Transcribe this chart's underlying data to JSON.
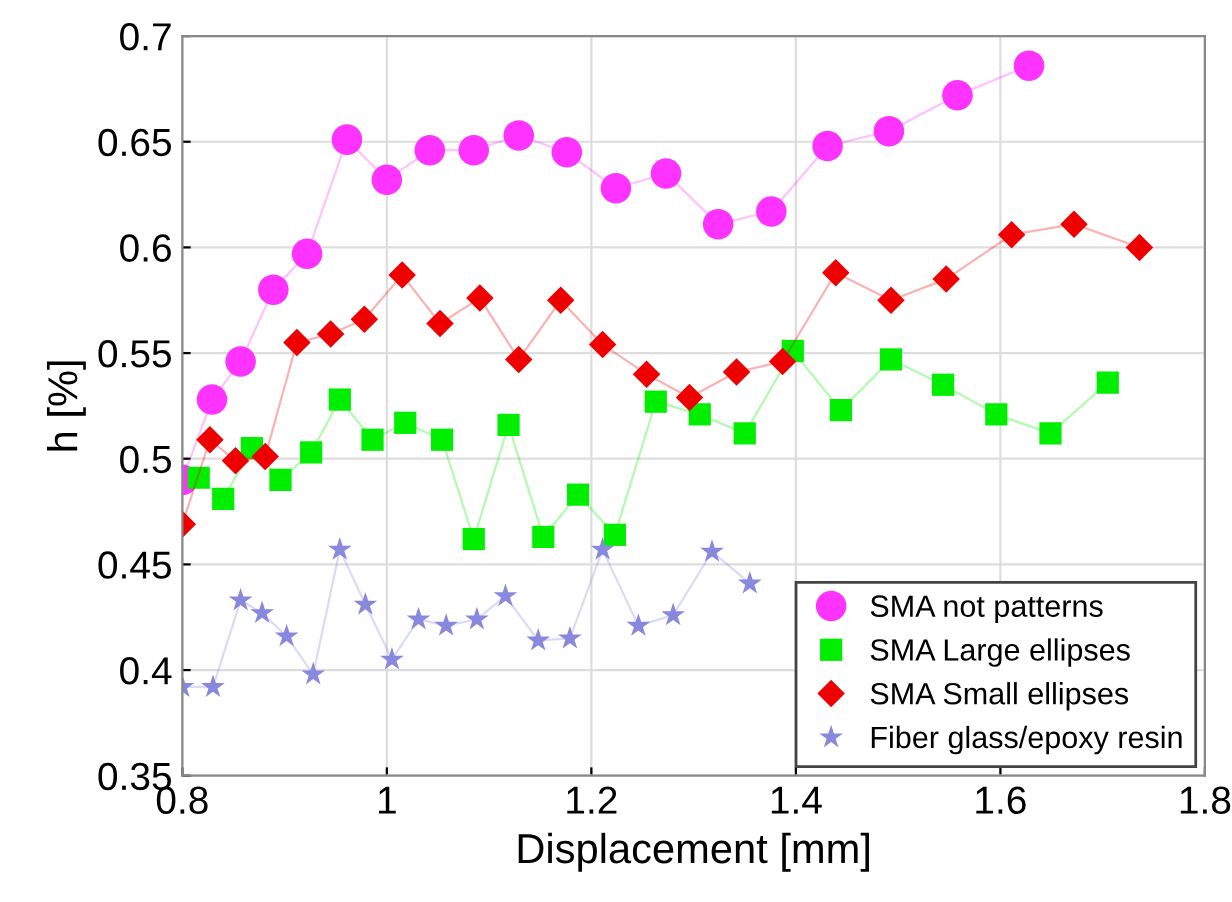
{
  "chart_data": {
    "type": "line",
    "xlabel": "Displacement [mm]",
    "ylabel": "h [%]",
    "xlim": [
      0.8,
      1.8
    ],
    "ylim": [
      0.35,
      0.7
    ],
    "xticks": [
      0.8,
      1,
      1.2,
      1.4,
      1.6,
      1.8
    ],
    "yticks": [
      0.35,
      0.4,
      0.45,
      0.5,
      0.55,
      0.6,
      0.65,
      0.7
    ],
    "grid": true,
    "legend": "bottom right",
    "series": [
      {
        "name": "SMA not patterns",
        "color": "#ff33ff",
        "marker": "circle",
        "x": [
          0.8,
          0.829,
          0.857,
          0.889,
          0.922,
          0.961,
          1.0,
          1.042,
          1.085,
          1.129,
          1.176,
          1.224,
          1.273,
          1.324,
          1.376,
          1.431,
          1.491,
          1.558,
          1.628
        ],
        "values": [
          0.49,
          0.528,
          0.546,
          0.58,
          0.597,
          0.651,
          0.632,
          0.646,
          0.646,
          0.653,
          0.645,
          0.628,
          0.635,
          0.611,
          0.617,
          0.648,
          0.655,
          0.672,
          0.686
        ]
      },
      {
        "name": "SMA Large ellipses",
        "color": "#00ee00",
        "marker": "square",
        "x": [
          0.816,
          0.84,
          0.868,
          0.896,
          0.926,
          0.954,
          0.986,
          1.018,
          1.054,
          1.085,
          1.119,
          1.153,
          1.187,
          1.223,
          1.263,
          1.306,
          1.35,
          1.397,
          1.444,
          1.493,
          1.544,
          1.596,
          1.649,
          1.705
        ],
        "values": [
          0.491,
          0.481,
          0.505,
          0.49,
          0.503,
          0.528,
          0.509,
          0.517,
          0.509,
          0.462,
          0.516,
          0.463,
          0.483,
          0.464,
          0.527,
          0.521,
          0.512,
          0.551,
          0.523,
          0.547,
          0.535,
          0.521,
          0.512,
          0.536
        ]
      },
      {
        "name": "SMA Small ellipses",
        "color": "#ee0000",
        "marker": "diamond",
        "x": [
          0.8,
          0.827,
          0.852,
          0.881,
          0.912,
          0.945,
          0.978,
          1.015,
          1.052,
          1.091,
          1.129,
          1.17,
          1.211,
          1.254,
          1.296,
          1.342,
          1.387,
          1.439,
          1.493,
          1.547,
          1.611,
          1.672,
          1.736
        ],
        "values": [
          0.469,
          0.509,
          0.499,
          0.501,
          0.555,
          0.559,
          0.566,
          0.587,
          0.564,
          0.576,
          0.547,
          0.575,
          0.554,
          0.54,
          0.529,
          0.541,
          0.546,
          0.588,
          0.575,
          0.585,
          0.606,
          0.611,
          0.6
        ]
      },
      {
        "name": "Fiber glass/epoxy resin",
        "color": "#8888dd",
        "marker": "star",
        "x": [
          0.8,
          0.83,
          0.857,
          0.878,
          0.902,
          0.928,
          0.954,
          0.979,
          1.005,
          1.031,
          1.058,
          1.088,
          1.116,
          1.148,
          1.179,
          1.211,
          1.246,
          1.28,
          1.318,
          1.355
        ],
        "values": [
          0.392,
          0.392,
          0.433,
          0.427,
          0.416,
          0.398,
          0.457,
          0.431,
          0.405,
          0.424,
          0.421,
          0.424,
          0.435,
          0.414,
          0.415,
          0.457,
          0.421,
          0.426,
          0.456,
          0.441
        ]
      }
    ]
  }
}
